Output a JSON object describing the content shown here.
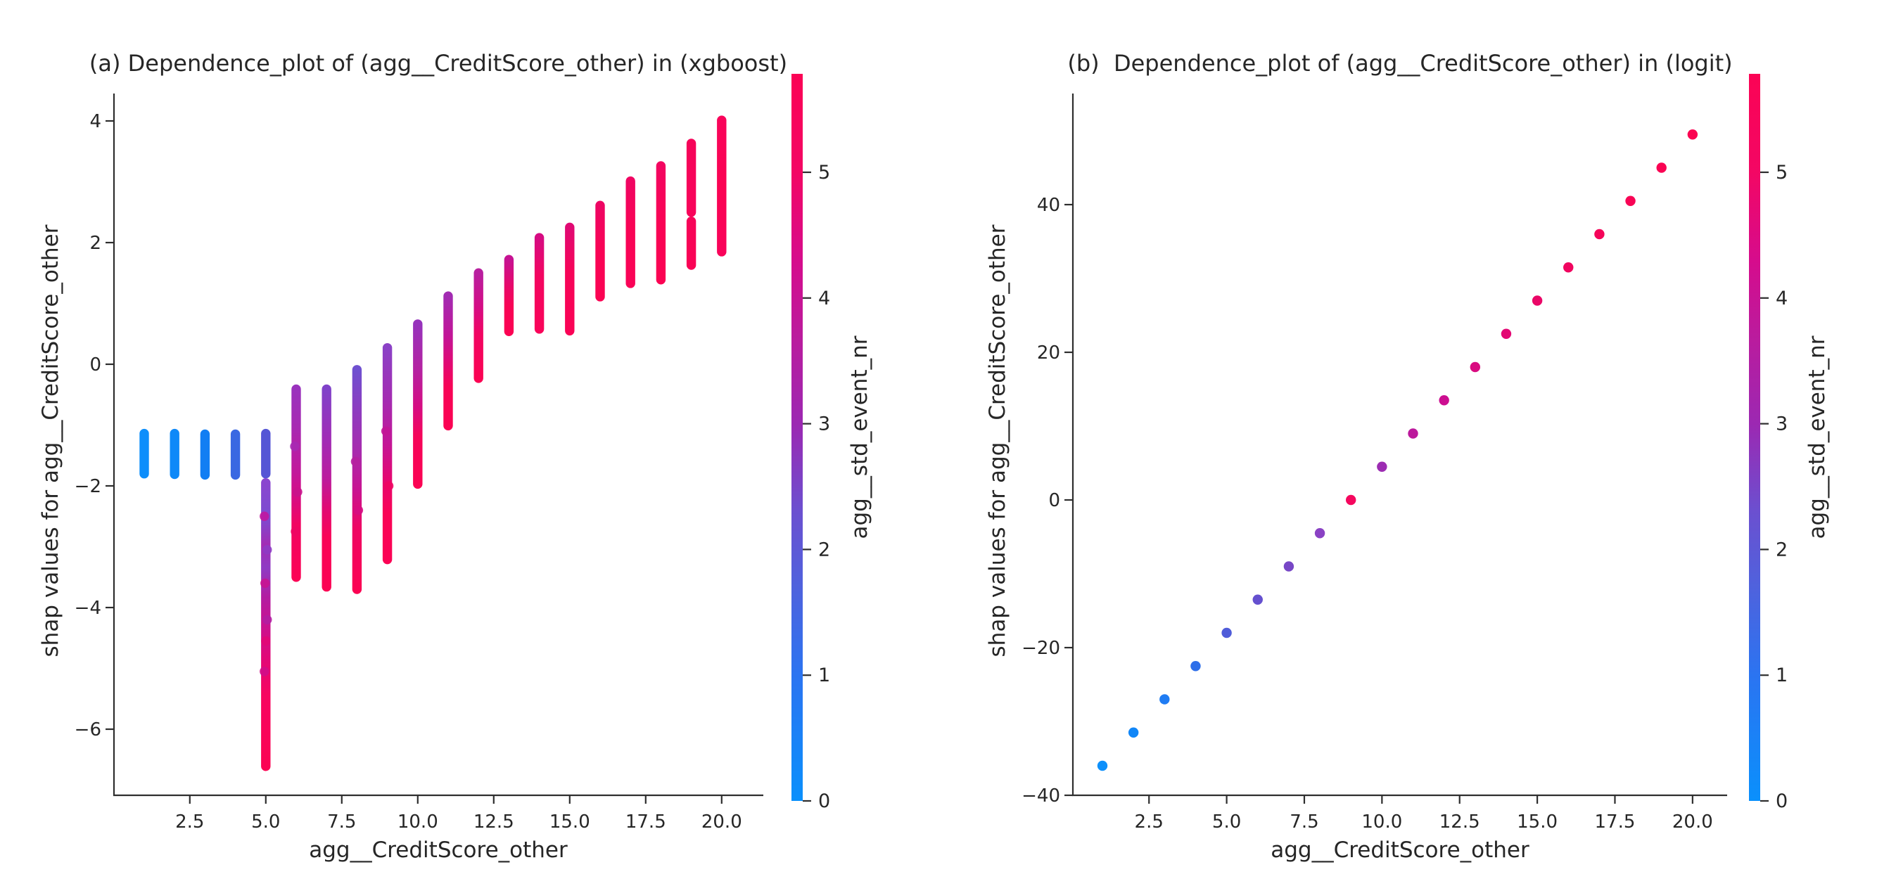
{
  "figure": {
    "background": "#ffffff",
    "text_color": "#262626",
    "spine_color": "#2e2e2e"
  },
  "colormap": {
    "name": "shap-blue-purple-red",
    "vmin": 0,
    "vmax": 5.78,
    "stops": [
      [
        0.0,
        "#0a90fc"
      ],
      [
        1.0,
        "#2b74f1"
      ],
      [
        1.7,
        "#4f62dd"
      ],
      [
        2.3,
        "#6b50d0"
      ],
      [
        3.0,
        "#9c28b2"
      ],
      [
        3.7,
        "#bb1b9d"
      ],
      [
        4.3,
        "#d60c8c"
      ],
      [
        5.0,
        "#f30764"
      ],
      [
        5.78,
        "#fb0355"
      ]
    ]
  },
  "chart_data": [
    {
      "id": "a",
      "type": "scatter",
      "subtype": "shap-dependence-strips",
      "title": "(a) Dependence_plot of (agg__CreditScore_other) in (xgboost)",
      "xlabel": "agg__CreditScore_other",
      "ylabel": "shap values for agg__CreditScore_other",
      "xlim": [
        0,
        21.4
      ],
      "ylim": [
        -7.1,
        4.45
      ],
      "grid": false,
      "x_tick_labels": [
        "2.5",
        "5.0",
        "7.5",
        "10.0",
        "12.5",
        "15.0",
        "17.5",
        "20.0"
      ],
      "x_tick_values": [
        2.5,
        5,
        7.5,
        10,
        12.5,
        15,
        17.5,
        20
      ],
      "y_tick_labels": [
        "4",
        "2",
        "0",
        "−2",
        "−4",
        "−6"
      ],
      "y_tick_values": [
        4,
        2,
        0,
        -2,
        -4,
        -6
      ],
      "colorbar": {
        "label": "agg__std_event_nr",
        "tick_labels": [
          "0",
          "1",
          "2",
          "3",
          "4",
          "5"
        ],
        "tick_values": [
          0,
          1,
          2,
          3,
          4,
          5
        ],
        "vmin": 0,
        "vmax": 5.78
      },
      "columns": [
        {
          "x": 1,
          "segments": [
            {
              "top": -1.14,
              "bottom": -1.8,
              "stops": [
                [
                  0,
                  "#0d8efb"
                ],
                [
                  1,
                  "#0d8efb"
                ]
              ]
            }
          ]
        },
        {
          "x": 2,
          "segments": [
            {
              "top": -1.14,
              "bottom": -1.81,
              "stops": [
                [
                  0,
                  "#0e89f8"
                ],
                [
                  1,
                  "#0e89f8"
                ]
              ]
            }
          ]
        },
        {
          "x": 3,
          "segments": [
            {
              "top": -1.15,
              "bottom": -1.82,
              "stops": [
                [
                  0,
                  "#127ef3"
                ],
                [
                  1,
                  "#127ef3"
                ]
              ]
            }
          ]
        },
        {
          "x": 4,
          "segments": [
            {
              "top": -1.15,
              "bottom": -1.82,
              "stops": [
                [
                  0,
                  "#3a68e2"
                ],
                [
                  1,
                  "#3a68e2"
                ]
              ]
            }
          ]
        },
        {
          "x": 5,
          "segments": [
            {
              "top": -1.14,
              "bottom": -1.8,
              "stops": [
                [
                  0,
                  "#5556d5"
                ],
                [
                  1,
                  "#5556d5"
                ]
              ]
            },
            {
              "top": -1.95,
              "bottom": -6.61,
              "stops": [
                [
                  0,
                  "#8a46cf"
                ],
                [
                  0.12,
                  "#7b4cd1"
                ],
                [
                  0.22,
                  "#a32cb4"
                ],
                [
                  0.3,
                  "#8e3bc4"
                ],
                [
                  0.4,
                  "#b21da2"
                ],
                [
                  0.5,
                  "#c91391"
                ],
                [
                  0.62,
                  "#e20877"
                ],
                [
                  0.75,
                  "#f70560"
                ],
                [
                  1,
                  "#fb0353"
                ]
              ],
              "blobs": [
                [
                  -2.5,
                  "#c117a0"
                ],
                [
                  -3.05,
                  "#8e3bc4"
                ],
                [
                  -3.6,
                  "#c91391"
                ],
                [
                  -4.2,
                  "#b21da2"
                ],
                [
                  -4.55,
                  "#e20877"
                ],
                [
                  -5.05,
                  "#d10d88"
                ]
              ]
            }
          ]
        },
        {
          "x": 6,
          "segments": [
            {
              "top": -0.41,
              "bottom": -3.5,
              "stops": [
                [
                  0,
                  "#9a32bd"
                ],
                [
                  0.2,
                  "#a72ab2"
                ],
                [
                  0.45,
                  "#c3179a"
                ],
                [
                  0.6,
                  "#db0b7e"
                ],
                [
                  0.72,
                  "#f20561"
                ],
                [
                  1,
                  "#fb0355"
                ]
              ],
              "blobs": [
                [
                  -1.35,
                  "#a72ab2"
                ],
                [
                  -2.1,
                  "#c9138c"
                ],
                [
                  -2.75,
                  "#ee0663"
                ]
              ]
            }
          ]
        },
        {
          "x": 7,
          "segments": [
            {
              "top": -0.41,
              "bottom": -3.66,
              "stops": [
                [
                  0,
                  "#8042c9"
                ],
                [
                  0.25,
                  "#a02cb6"
                ],
                [
                  0.45,
                  "#bb1c9e"
                ],
                [
                  0.6,
                  "#e00a74"
                ],
                [
                  0.75,
                  "#f90456"
                ],
                [
                  1,
                  "#fb0353"
                ]
              ]
            }
          ]
        },
        {
          "x": 8,
          "segments": [
            {
              "top": -0.09,
              "bottom": -3.7,
              "stops": [
                [
                  0,
                  "#6f50d0"
                ],
                [
                  0.18,
                  "#8c3cc0"
                ],
                [
                  0.38,
                  "#a92aad"
                ],
                [
                  0.55,
                  "#c91391"
                ],
                [
                  0.72,
                  "#ee0663"
                ],
                [
                  1,
                  "#fb0353"
                ]
              ],
              "blobs": [
                [
                  -1.6,
                  "#b621a0"
                ],
                [
                  -2.4,
                  "#d60c82"
                ]
              ]
            }
          ]
        },
        {
          "x": 9,
          "segments": [
            {
              "top": 0.27,
              "bottom": -3.21,
              "stops": [
                [
                  0,
                  "#8b41c6"
                ],
                [
                  0.25,
                  "#a42bb1"
                ],
                [
                  0.45,
                  "#c31597"
                ],
                [
                  0.62,
                  "#e40871"
                ],
                [
                  0.78,
                  "#f90456"
                ],
                [
                  1,
                  "#fb0355"
                ]
              ],
              "blobs": [
                [
                  -1.1,
                  "#c31597"
                ],
                [
                  -2.0,
                  "#ee0663"
                ]
              ]
            }
          ]
        },
        {
          "x": 10,
          "segments": [
            {
              "top": 0.66,
              "bottom": -1.97,
              "stops": [
                [
                  0,
                  "#9633bc"
                ],
                [
                  0.3,
                  "#b621a0"
                ],
                [
                  0.52,
                  "#d60c82"
                ],
                [
                  0.7,
                  "#f50559"
                ],
                [
                  1,
                  "#fb0353"
                ]
              ]
            }
          ]
        },
        {
          "x": 11,
          "segments": [
            {
              "top": 1.12,
              "bottom": -1.01,
              "stops": [
                [
                  0,
                  "#a22bb2"
                ],
                [
                  0.3,
                  "#c11598"
                ],
                [
                  0.52,
                  "#e10973"
                ],
                [
                  0.7,
                  "#f70456"
                ],
                [
                  1,
                  "#fb0353"
                ]
              ]
            }
          ]
        },
        {
          "x": 12,
          "segments": [
            {
              "top": 1.5,
              "bottom": -0.23,
              "stops": [
                [
                  0,
                  "#b81f9f"
                ],
                [
                  0.32,
                  "#d40d85"
                ],
                [
                  0.58,
                  "#f10562"
                ],
                [
                  1,
                  "#fb0353"
                ]
              ]
            }
          ]
        },
        {
          "x": 13,
          "segments": [
            {
              "top": 1.72,
              "bottom": 0.54,
              "stops": [
                [
                  0,
                  "#c61292"
                ],
                [
                  0.38,
                  "#e80869"
                ],
                [
                  0.65,
                  "#f80455"
                ],
                [
                  1,
                  "#fb0353"
                ]
              ]
            }
          ]
        },
        {
          "x": 14,
          "segments": [
            {
              "top": 2.08,
              "bottom": 0.58,
              "stops": [
                [
                  0,
                  "#d60b82"
                ],
                [
                  0.42,
                  "#f30560"
                ],
                [
                  1,
                  "#f9045a"
                ]
              ]
            }
          ]
        },
        {
          "x": 15,
          "segments": [
            {
              "top": 2.25,
              "bottom": 0.55,
              "stops": [
                [
                  0,
                  "#e00973"
                ],
                [
                  0.42,
                  "#f60458"
                ],
                [
                  1,
                  "#fa0356"
                ]
              ]
            }
          ]
        },
        {
          "x": 16,
          "segments": [
            {
              "top": 2.61,
              "bottom": 1.11,
              "stops": [
                [
                  0,
                  "#ee0563"
                ],
                [
                  0.5,
                  "#f90355"
                ],
                [
                  1,
                  "#fb0353"
                ]
              ]
            }
          ]
        },
        {
          "x": 17,
          "segments": [
            {
              "top": 3.01,
              "bottom": 1.33,
              "stops": [
                [
                  0,
                  "#f00562"
                ],
                [
                  0.45,
                  "#f90355"
                ],
                [
                  1,
                  "#fa0357"
                ]
              ]
            }
          ]
        },
        {
          "x": 18,
          "segments": [
            {
              "top": 3.26,
              "bottom": 1.39,
              "stops": [
                [
                  0,
                  "#f30560"
                ],
                [
                  0.5,
                  "#fa0355"
                ],
                [
                  1,
                  "#fb0353"
                ]
              ]
            }
          ]
        },
        {
          "x": 19,
          "segments": [
            {
              "top": 3.63,
              "bottom": 2.5,
              "stops": [
                [
                  0,
                  "#f60459"
                ],
                [
                  1,
                  "#f8045a"
                ]
              ]
            },
            {
              "top": 2.35,
              "bottom": 1.63,
              "stops": [
                [
                  0,
                  "#f70458"
                ],
                [
                  1,
                  "#fa0355"
                ]
              ]
            }
          ]
        },
        {
          "x": 20,
          "segments": [
            {
              "top": 4.01,
              "bottom": 1.85,
              "stops": [
                [
                  0,
                  "#f9045a"
                ],
                [
                  0.5,
                  "#fb0353"
                ],
                [
                  1,
                  "#f9035a"
                ]
              ]
            }
          ]
        }
      ]
    },
    {
      "id": "b",
      "type": "scatter",
      "subtype": "shap-dependence-points",
      "title": "(b)  Dependence_plot of (agg__CreditScore_other) in (logit)",
      "xlabel": "agg__CreditScore_other",
      "ylabel": "shap values for agg__CreditScore_other",
      "xlim": [
        0,
        21.4
      ],
      "ylim": [
        -40,
        54
      ],
      "grid": false,
      "x_tick_labels": [
        "2.5",
        "5.0",
        "7.5",
        "10.0",
        "12.5",
        "15.0",
        "17.5",
        "20.0"
      ],
      "x_tick_values": [
        2.5,
        5,
        7.5,
        10,
        12.5,
        15,
        17.5,
        20
      ],
      "y_tick_labels": [
        "40",
        "20",
        "0",
        "−20",
        "−40"
      ],
      "y_tick_values": [
        40,
        20,
        0,
        -20,
        -40
      ],
      "colorbar": {
        "label": "agg__std_event_nr",
        "tick_labels": [
          "0",
          "1",
          "2",
          "3",
          "4",
          "5"
        ],
        "tick_values": [
          0,
          1,
          2,
          3,
          4,
          5
        ],
        "vmin": 0,
        "vmax": 5.78
      },
      "points": [
        {
          "x": 1,
          "y": -36.0,
          "color": "#0d90fb"
        },
        {
          "x": 2,
          "y": -31.5,
          "color": "#1186f7"
        },
        {
          "x": 3,
          "y": -27.0,
          "color": "#1f7cf3"
        },
        {
          "x": 4,
          "y": -22.5,
          "color": "#2e6fe9"
        },
        {
          "x": 5,
          "y": -18.0,
          "color": "#4f5cd9"
        },
        {
          "x": 6,
          "y": -13.5,
          "color": "#6550cf"
        },
        {
          "x": 7,
          "y": -9.0,
          "color": "#7747c6"
        },
        {
          "x": 8,
          "y": -4.5,
          "color": "#8a42c4"
        },
        {
          "x": 9,
          "y": 0.0,
          "color": "#f5075e"
        },
        {
          "x": 10,
          "y": 4.5,
          "color": "#9c2cb2"
        },
        {
          "x": 11,
          "y": 9.0,
          "color": "#bc189c"
        },
        {
          "x": 12,
          "y": 13.5,
          "color": "#cc0e90"
        },
        {
          "x": 13,
          "y": 18.0,
          "color": "#d90b80"
        },
        {
          "x": 14,
          "y": 22.5,
          "color": "#e30874"
        },
        {
          "x": 15,
          "y": 27.0,
          "color": "#ea0767"
        },
        {
          "x": 16,
          "y": 31.5,
          "color": "#f0055f"
        },
        {
          "x": 17,
          "y": 36.0,
          "color": "#f50459"
        },
        {
          "x": 18,
          "y": 40.5,
          "color": "#f80455"
        },
        {
          "x": 19,
          "y": 45.0,
          "color": "#fa0353"
        },
        {
          "x": 20,
          "y": 49.5,
          "color": "#fb0351"
        }
      ]
    }
  ]
}
